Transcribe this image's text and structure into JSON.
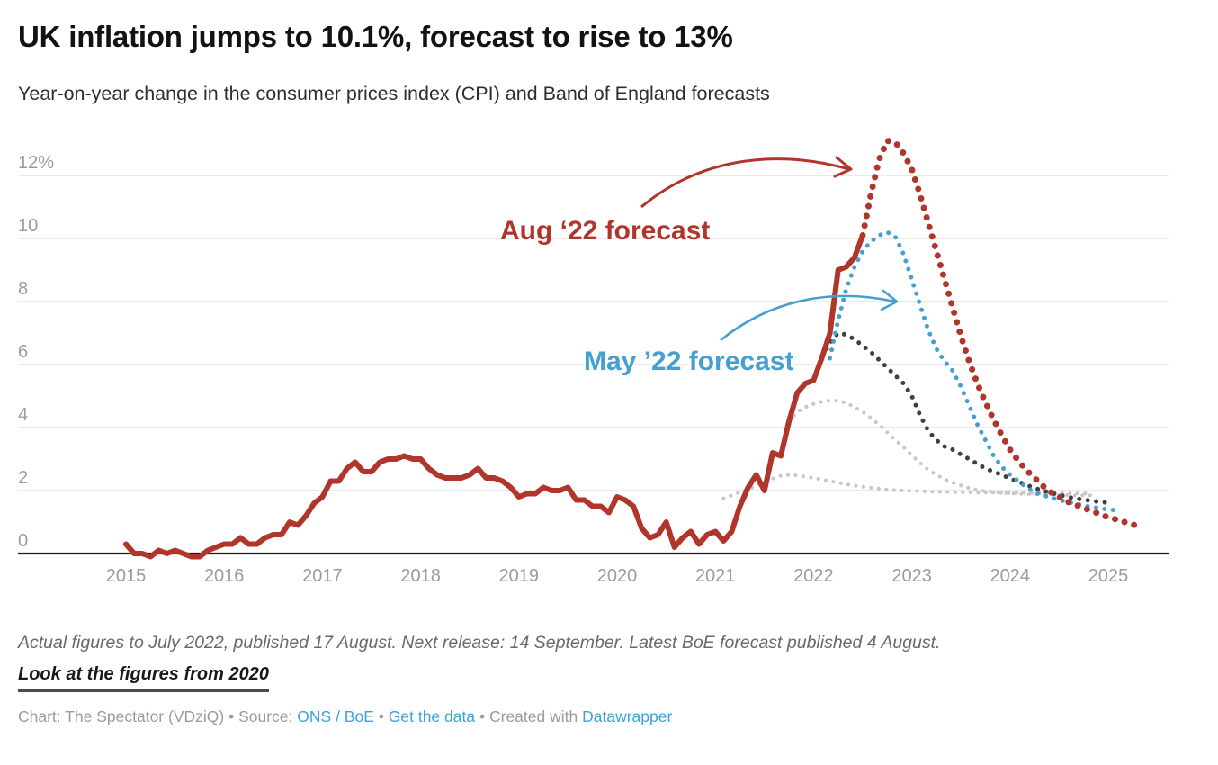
{
  "header": {
    "title": "UK inflation jumps to 10.1%, forecast to rise to 13%",
    "subtitle": "Year-on-year change in the consumer prices index (CPI) and Band of England forecasts"
  },
  "annotations": {
    "aug22_label": "Aug ‘22 forecast",
    "may22_label": "May ’22 forecast"
  },
  "footer": {
    "notes": "Actual figures to July 2022, published 17 August. Next release: 14 September. Latest BoE forecast published 4 August.",
    "link_label": "Look at the figures from 2020",
    "byline": {
      "chart_credit": "Chart: The Spectator (VDziQ)",
      "bullet": "•",
      "source_label": "Source:",
      "source_link": "ONS / BoE",
      "get_data_link": "Get the data",
      "created_with": "Created with",
      "tool_link": "Datawrapper"
    }
  },
  "colors": {
    "red": "#b0362c",
    "blue": "#45a0d1",
    "dark_dotted": "#3f3f3f",
    "light_dotted": "#c7c7c7",
    "axis_text": "#9c9c9c",
    "gridline": "#e4e4e4",
    "baseline": "#1a1a1a",
    "link_blue": "#3ea3d9",
    "title_text": "#121212",
    "notes_text": "#686868"
  },
  "chart_data": {
    "type": "line",
    "title": "UK inflation jumps to 10.1%, forecast to rise to 13%",
    "subtitle": "Year-on-year change in the consumer prices index (CPI) and Band of England forecasts",
    "x_unit": "months since 2015-01",
    "x_axis_labels": [
      "2015",
      "2016",
      "2017",
      "2018",
      "2019",
      "2020",
      "2021",
      "2022",
      "2023",
      "2024",
      "2025"
    ],
    "y_axis": {
      "ticks": [
        0,
        2,
        4,
        6,
        8,
        10,
        12
      ],
      "tick_labels": [
        "0",
        "2",
        "4",
        "6",
        "8",
        "10",
        "12%"
      ],
      "ylim": [
        -0.6,
        13.6
      ],
      "grid": true
    },
    "legend_position": "annotations-on-chart",
    "series": [
      {
        "name": "earlier 2021 BoE forecast (unlabelled, light grey dotted)",
        "style": "dotted",
        "color": "#c7c7c7",
        "line_width": 4.2,
        "dot_gap": 8.5,
        "start_month": "2021-02",
        "values": [
          1.75,
          1.85,
          1.95,
          2.05,
          2.15,
          2.27,
          2.38,
          2.47,
          2.5,
          2.48,
          2.44,
          2.4,
          2.35,
          2.3,
          2.25,
          2.2,
          2.16,
          2.12,
          2.09,
          2.06,
          2.03,
          2.01,
          2.0,
          1.99,
          1.98,
          1.97,
          1.96,
          1.96,
          1.95,
          1.95,
          1.95,
          1.94,
          1.94,
          1.94,
          1.93,
          1.93,
          1.93,
          1.93,
          1.92,
          1.92,
          1.92,
          1.92,
          1.92,
          1.92,
          1.91,
          1.91
        ]
      },
      {
        "name": "late 2021 BoE forecast (unlabelled, light grey dotted)",
        "style": "dotted",
        "color": "#c7c7c7",
        "line_width": 4.2,
        "dot_gap": 8.5,
        "start_month": "2021-10",
        "values": [
          4.2,
          4.5,
          4.65,
          4.75,
          4.82,
          4.86,
          4.85,
          4.78,
          4.65,
          4.5,
          4.3,
          4.1,
          3.85,
          3.6,
          3.38,
          3.12,
          2.88,
          2.66,
          2.5,
          2.36,
          2.25,
          2.16,
          2.08,
          2.02,
          1.98,
          1.95,
          1.93,
          1.91,
          1.9,
          1.89,
          1.88,
          1.87,
          1.87,
          1.86,
          1.86,
          1.85,
          1.85,
          1.85
        ]
      },
      {
        "name": "Feb '22 BoE forecast (unlabelled, dark grey dotted)",
        "style": "dotted",
        "color": "#3f3f3f",
        "line_width": 5,
        "dot_gap": 9.5,
        "start_month": "2022-01",
        "values": [
          5.5,
          6.2,
          6.7,
          7.0,
          6.95,
          6.8,
          6.6,
          6.4,
          6.15,
          5.9,
          5.65,
          5.4,
          5.0,
          4.4,
          3.9,
          3.6,
          3.4,
          3.3,
          3.15,
          3.0,
          2.85,
          2.7,
          2.6,
          2.5,
          2.38,
          2.28,
          2.18,
          2.08,
          2.0,
          1.93,
          1.86,
          1.8,
          1.75,
          1.71,
          1.67,
          1.64,
          1.62
        ]
      },
      {
        "name": "May ’22 forecast",
        "style": "dotted",
        "color": "#45a0d1",
        "line_width": 5,
        "dot_gap": 9.5,
        "start_month": "2022-03",
        "values": [
          6.2,
          7.4,
          8.4,
          9.1,
          9.6,
          9.9,
          10.1,
          10.2,
          10.05,
          9.5,
          8.7,
          7.9,
          7.1,
          6.5,
          6.1,
          5.8,
          5.3,
          4.7,
          4.1,
          3.6,
          3.1,
          2.75,
          2.5,
          2.3,
          2.1,
          1.95,
          1.85,
          1.78,
          1.7,
          1.64,
          1.58,
          1.53,
          1.48,
          1.44,
          1.4,
          1.37
        ]
      },
      {
        "name": "CPI actual (year-on-year %)",
        "style": "solid",
        "color": "#b0362c",
        "line_width": 6,
        "start_month": "2015-01",
        "values": [
          0.3,
          0.0,
          0.0,
          -0.1,
          0.1,
          0.0,
          0.1,
          0.0,
          -0.1,
          -0.1,
          0.1,
          0.2,
          0.3,
          0.3,
          0.5,
          0.3,
          0.3,
          0.5,
          0.6,
          0.6,
          1.0,
          0.9,
          1.2,
          1.6,
          1.8,
          2.3,
          2.3,
          2.7,
          2.9,
          2.6,
          2.6,
          2.9,
          3.0,
          3.0,
          3.1,
          3.0,
          3.0,
          2.7,
          2.5,
          2.4,
          2.4,
          2.4,
          2.5,
          2.7,
          2.4,
          2.4,
          2.3,
          2.1,
          1.8,
          1.9,
          1.9,
          2.1,
          2.0,
          2.0,
          2.1,
          1.7,
          1.7,
          1.5,
          1.5,
          1.3,
          1.8,
          1.7,
          1.5,
          0.8,
          0.5,
          0.6,
          1.0,
          0.2,
          0.5,
          0.7,
          0.3,
          0.6,
          0.7,
          0.4,
          0.7,
          1.5,
          2.1,
          2.5,
          2.0,
          3.2,
          3.1,
          4.2,
          5.1,
          5.4,
          5.5,
          6.2,
          7.0,
          9.0,
          9.1,
          9.4,
          10.1
        ]
      },
      {
        "name": "Aug ‘22 forecast",
        "style": "dotted",
        "color": "#b0362c",
        "line_width": 7,
        "dot_gap": 11,
        "start_month": "2022-07",
        "values": [
          10.1,
          11.4,
          12.5,
          13.1,
          13.05,
          12.7,
          12.2,
          11.4,
          10.5,
          9.6,
          8.7,
          7.8,
          6.9,
          6.1,
          5.4,
          4.8,
          4.25,
          3.75,
          3.3,
          2.95,
          2.65,
          2.4,
          2.15,
          1.95,
          1.8,
          1.65,
          1.55,
          1.45,
          1.35,
          1.25,
          1.15,
          1.08,
          1.0,
          0.92,
          0.85
        ]
      }
    ]
  }
}
